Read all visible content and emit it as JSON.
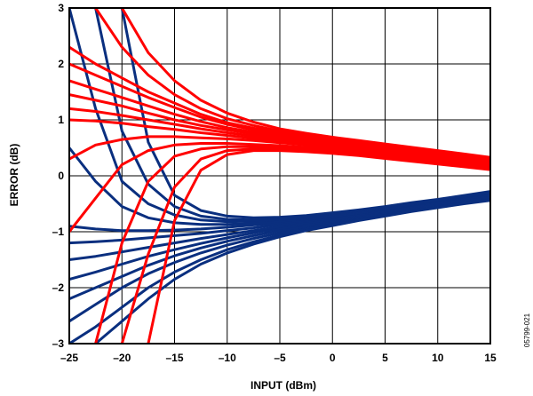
{
  "chart_data": {
    "type": "line",
    "title": "",
    "xlabel": "INPUT (dBm)",
    "ylabel": "ERROR (dB)",
    "xlim": [
      -25,
      15
    ],
    "ylim": [
      -3,
      3
    ],
    "grid": true,
    "x_ticks": [
      -25,
      -20,
      -15,
      -10,
      -5,
      0,
      5,
      10,
      15
    ],
    "x_tick_labels": [
      "–25",
      "–20",
      "–15",
      "–10",
      "–5",
      "0",
      "5",
      "10",
      "15"
    ],
    "y_ticks": [
      -3,
      -2,
      -1,
      0,
      1,
      2,
      3
    ],
    "y_tick_labels": [
      "–3",
      "–2",
      "–1",
      "0",
      "1",
      "2",
      "3"
    ],
    "figure_id": "05799-021",
    "colors": {
      "upper": "#ff0000",
      "lower": "#0a2f7f"
    },
    "x": [
      -25,
      -22.5,
      -20,
      -17.5,
      -15,
      -12.5,
      -10,
      -7.5,
      -5,
      -2.5,
      0,
      2.5,
      5,
      7.5,
      10,
      12.5,
      15
    ],
    "series": [
      {
        "group": "upper",
        "values": [
          2.3,
          2.0,
          1.75,
          1.5,
          1.3,
          1.1,
          0.95,
          0.85,
          0.78,
          0.72,
          0.66,
          0.6,
          0.53,
          0.47,
          0.41,
          0.35,
          0.29
        ]
      },
      {
        "group": "upper",
        "values": [
          2.0,
          1.8,
          1.6,
          1.4,
          1.22,
          1.05,
          0.92,
          0.82,
          0.75,
          0.69,
          0.63,
          0.57,
          0.5,
          0.44,
          0.38,
          0.32,
          0.26
        ]
      },
      {
        "group": "upper",
        "values": [
          1.7,
          1.55,
          1.4,
          1.25,
          1.1,
          0.97,
          0.86,
          0.78,
          0.72,
          0.66,
          0.6,
          0.54,
          0.48,
          0.42,
          0.36,
          0.3,
          0.24
        ]
      },
      {
        "group": "upper",
        "values": [
          1.45,
          1.35,
          1.25,
          1.12,
          1.0,
          0.9,
          0.82,
          0.75,
          0.69,
          0.63,
          0.58,
          0.52,
          0.46,
          0.4,
          0.34,
          0.28,
          0.22
        ]
      },
      {
        "group": "upper",
        "values": [
          1.2,
          1.15,
          1.08,
          1.0,
          0.92,
          0.84,
          0.77,
          0.71,
          0.66,
          0.61,
          0.55,
          0.5,
          0.44,
          0.38,
          0.32,
          0.26,
          0.2
        ]
      },
      {
        "group": "upper",
        "values": [
          1.0,
          0.98,
          0.94,
          0.88,
          0.83,
          0.77,
          0.72,
          0.67,
          0.63,
          0.58,
          0.53,
          0.48,
          0.42,
          0.36,
          0.3,
          0.25,
          0.19
        ]
      },
      {
        "group": "upper",
        "values": [
          0.3,
          0.55,
          0.65,
          0.7,
          0.7,
          0.68,
          0.66,
          0.63,
          0.59,
          0.55,
          0.5,
          0.45,
          0.4,
          0.34,
          0.29,
          0.23,
          0.17
        ]
      },
      {
        "group": "upper",
        "values": [
          -1.0,
          -0.4,
          0.2,
          0.45,
          0.55,
          0.58,
          0.58,
          0.56,
          0.54,
          0.51,
          0.47,
          0.42,
          0.37,
          0.32,
          0.27,
          0.21,
          0.15
        ]
      },
      {
        "group": "upper",
        "values": [
          null,
          -3.0,
          -1.2,
          -0.1,
          0.35,
          0.48,
          0.52,
          0.52,
          0.5,
          0.48,
          0.44,
          0.4,
          0.35,
          0.3,
          0.25,
          0.19,
          0.13
        ]
      },
      {
        "group": "upper",
        "values": [
          null,
          null,
          -3.0,
          -1.4,
          -0.2,
          0.3,
          0.45,
          0.48,
          0.47,
          0.45,
          0.42,
          0.38,
          0.33,
          0.28,
          0.23,
          0.17,
          0.12
        ]
      },
      {
        "group": "upper",
        "values": [
          null,
          null,
          null,
          -3.0,
          -0.8,
          0.1,
          0.38,
          0.45,
          0.45,
          0.43,
          0.4,
          0.36,
          0.31,
          0.26,
          0.21,
          0.16,
          0.11
        ]
      },
      {
        "group": "upper",
        "values": [
          null,
          3.0,
          2.3,
          1.8,
          1.45,
          1.2,
          1.02,
          0.9,
          0.8,
          0.73,
          0.67,
          0.61,
          0.55,
          0.49,
          0.43,
          0.37,
          0.31
        ]
      },
      {
        "group": "upper",
        "values": [
          null,
          null,
          3.0,
          2.2,
          1.7,
          1.35,
          1.12,
          0.96,
          0.84,
          0.76,
          0.69,
          0.63,
          0.57,
          0.51,
          0.45,
          0.39,
          0.33
        ]
      },
      {
        "group": "lower",
        "values": [
          -2.6,
          -2.3,
          -2.0,
          -1.75,
          -1.55,
          -1.38,
          -1.24,
          -1.12,
          -1.02,
          -0.93,
          -0.85,
          -0.77,
          -0.69,
          -0.62,
          -0.55,
          -0.48,
          -0.42
        ]
      },
      {
        "group": "lower",
        "values": [
          -2.2,
          -2.0,
          -1.8,
          -1.6,
          -1.43,
          -1.29,
          -1.17,
          -1.07,
          -0.98,
          -0.9,
          -0.82,
          -0.75,
          -0.68,
          -0.6,
          -0.53,
          -0.46,
          -0.4
        ]
      },
      {
        "group": "lower",
        "values": [
          -1.85,
          -1.72,
          -1.58,
          -1.44,
          -1.32,
          -1.21,
          -1.11,
          -1.02,
          -0.94,
          -0.87,
          -0.8,
          -0.73,
          -0.66,
          -0.59,
          -0.52,
          -0.45,
          -0.38
        ]
      },
      {
        "group": "lower",
        "values": [
          -1.5,
          -1.44,
          -1.36,
          -1.28,
          -1.2,
          -1.12,
          -1.05,
          -0.98,
          -0.91,
          -0.84,
          -0.78,
          -0.71,
          -0.64,
          -0.57,
          -0.5,
          -0.43,
          -0.36
        ]
      },
      {
        "group": "lower",
        "values": [
          -1.2,
          -1.18,
          -1.15,
          -1.11,
          -1.07,
          -1.03,
          -0.98,
          -0.93,
          -0.87,
          -0.81,
          -0.75,
          -0.69,
          -0.62,
          -0.55,
          -0.48,
          -0.41,
          -0.34
        ]
      },
      {
        "group": "lower",
        "values": [
          -0.9,
          -0.95,
          -0.98,
          -0.98,
          -0.97,
          -0.95,
          -0.92,
          -0.88,
          -0.84,
          -0.79,
          -0.73,
          -0.67,
          -0.6,
          -0.53,
          -0.46,
          -0.39,
          -0.32
        ]
      },
      {
        "group": "lower",
        "values": [
          0.5,
          -0.1,
          -0.55,
          -0.75,
          -0.84,
          -0.87,
          -0.87,
          -0.85,
          -0.81,
          -0.77,
          -0.72,
          -0.66,
          -0.59,
          -0.52,
          -0.45,
          -0.38,
          -0.31
        ]
      },
      {
        "group": "lower",
        "values": [
          3.0,
          1.2,
          -0.1,
          -0.5,
          -0.7,
          -0.79,
          -0.82,
          -0.81,
          -0.78,
          -0.75,
          -0.7,
          -0.64,
          -0.58,
          -0.51,
          -0.44,
          -0.37,
          -0.3
        ]
      },
      {
        "group": "lower",
        "values": [
          null,
          3.0,
          0.8,
          -0.15,
          -0.55,
          -0.72,
          -0.78,
          -0.79,
          -0.77,
          -0.73,
          -0.68,
          -0.62,
          -0.56,
          -0.5,
          -0.43,
          -0.36,
          -0.29
        ]
      },
      {
        "group": "lower",
        "values": [
          null,
          null,
          3.0,
          0.6,
          -0.35,
          -0.62,
          -0.72,
          -0.75,
          -0.74,
          -0.71,
          -0.66,
          -0.61,
          -0.55,
          -0.48,
          -0.42,
          -0.35,
          -0.28
        ]
      },
      {
        "group": "lower",
        "values": [
          -3.0,
          -2.7,
          -2.35,
          -2.0,
          -1.72,
          -1.5,
          -1.32,
          -1.18,
          -1.06,
          -0.96,
          -0.87,
          -0.79,
          -0.71,
          -0.63,
          -0.56,
          -0.49,
          -0.43
        ]
      },
      {
        "group": "lower",
        "values": [
          null,
          -3.0,
          -2.6,
          -2.2,
          -1.85,
          -1.58,
          -1.38,
          -1.22,
          -1.09,
          -0.98,
          -0.89,
          -0.8,
          -0.72,
          -0.64,
          -0.57,
          -0.5,
          -0.44
        ]
      }
    ]
  }
}
